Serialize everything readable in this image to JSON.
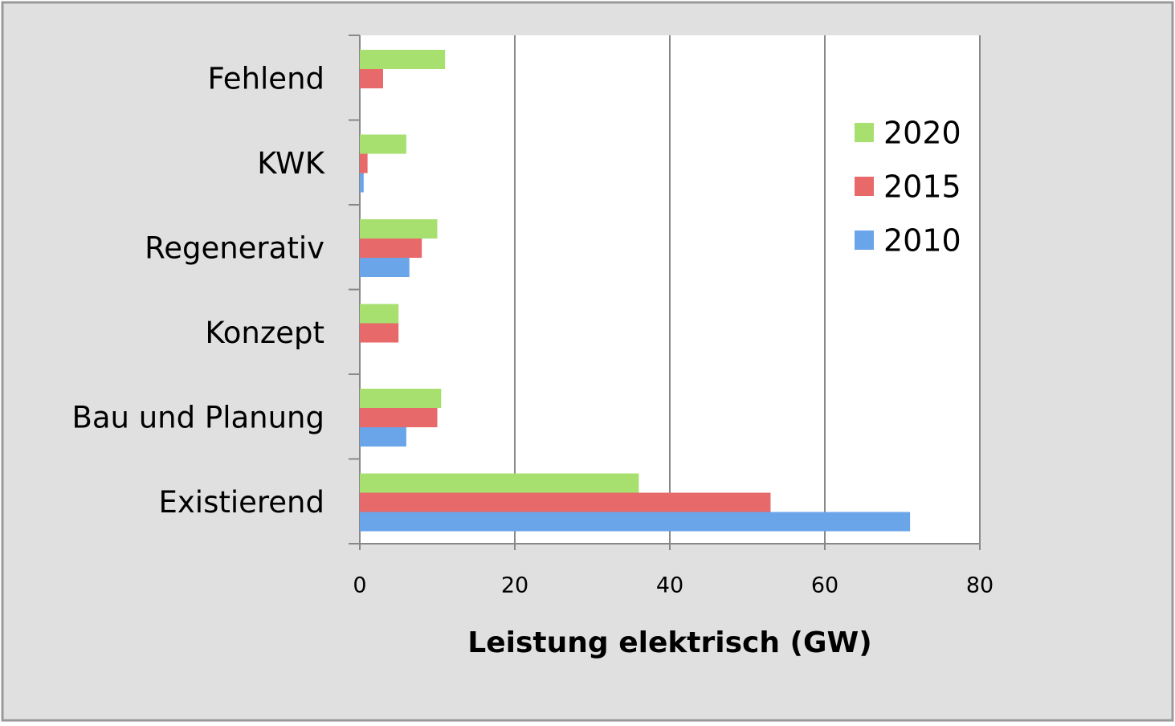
{
  "chart_data": {
    "type": "hbar",
    "categories": [
      "Fehlend",
      "KWK",
      "Regenerativ",
      "Konzept",
      "Bau und Planung",
      "Existierend"
    ],
    "series": [
      {
        "name": "2010",
        "color": "#6aa5ea",
        "values": [
          0,
          0.5,
          6.4,
          0,
          6,
          71
        ]
      },
      {
        "name": "2015",
        "color": "#e8696a",
        "values": [
          3,
          1,
          8,
          5,
          10,
          53
        ]
      },
      {
        "name": "2020",
        "color": "#a8e070",
        "values": [
          11,
          6,
          10,
          5,
          10.5,
          36
        ]
      }
    ],
    "x_label": "Leistung elektrisch (GW)",
    "xlim": [
      0,
      80
    ],
    "xticks": [
      0,
      20,
      40,
      60,
      80
    ],
    "grid": true,
    "legend": "upper right"
  }
}
